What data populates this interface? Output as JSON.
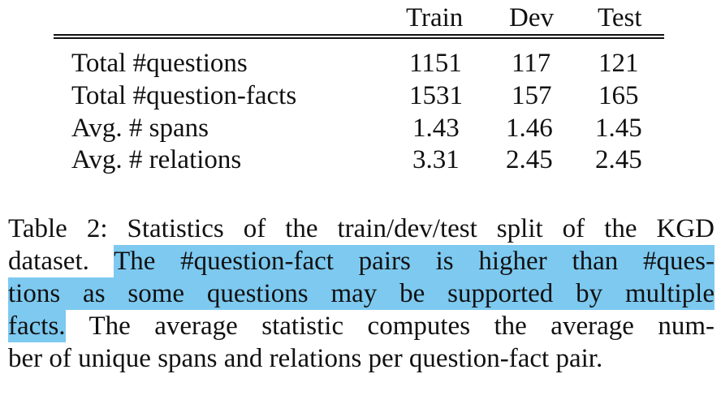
{
  "table": {
    "headers": [
      "Train",
      "Dev",
      "Test"
    ],
    "rows": [
      {
        "label": "Total #questions",
        "values": [
          "1151",
          "117",
          "121"
        ]
      },
      {
        "label": "Total #question-facts",
        "values": [
          "1531",
          "157",
          "165"
        ]
      },
      {
        "label": "Avg. # spans",
        "values": [
          "1.43",
          "1.46",
          "1.45"
        ]
      },
      {
        "label": "Avg. # relations",
        "values": [
          "3.31",
          "2.45",
          "2.45"
        ]
      }
    ]
  },
  "caption": {
    "line1": "Table 2: Statistics of the train/dev/test split of the KGD",
    "line2_plain": "dataset.",
    "line2_highlight": "The #question-fact pairs is higher than #ques-",
    "line3_highlight": "tions as some questions may be supported by multiple",
    "line4_highlight": "facts.",
    "line4_plain": "The average statistic computes the average num-",
    "line5": "ber of unique spans and relations per question-fact pair."
  },
  "colors": {
    "highlight": "#7dc9f0",
    "text": "#111111"
  }
}
